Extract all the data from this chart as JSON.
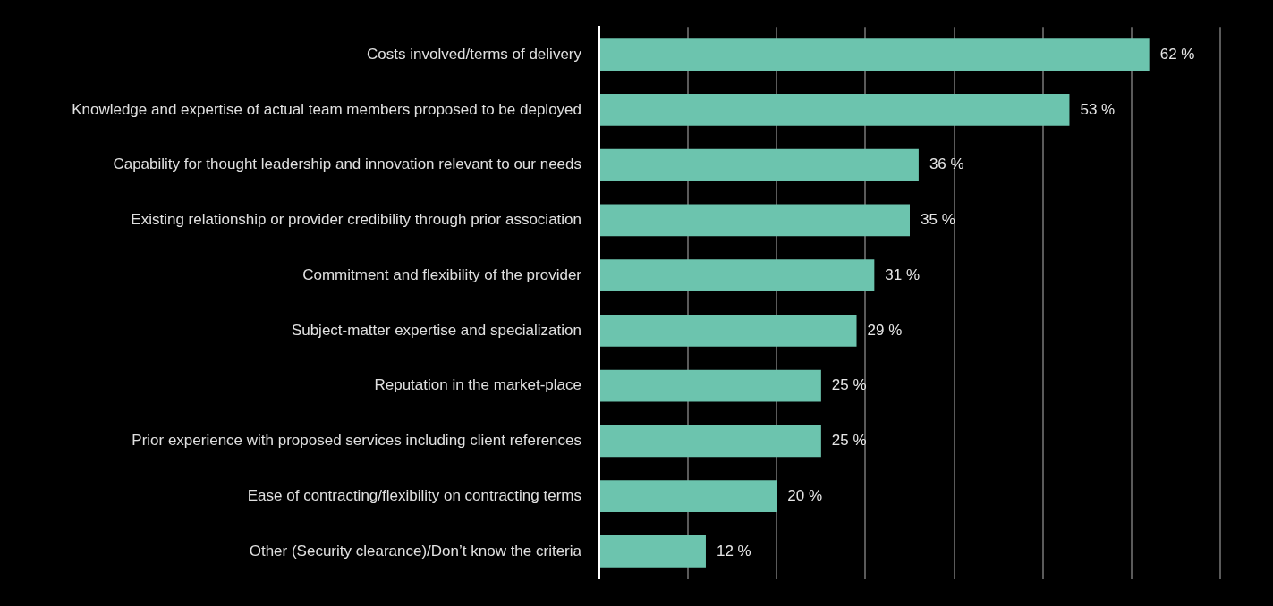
{
  "chart_data": {
    "type": "bar",
    "orientation": "horizontal",
    "categories": [
      "Costs involved/terms of delivery",
      "Knowledge and expertise of actual team members proposed to be deployed",
      "Capability for thought leadership and innovation relevant to our needs",
      "Existing relationship or provider credibility through prior association",
      "Commitment and flexibility of the provider",
      "Subject-matter expertise and specialization",
      "Reputation in the market-place",
      "Prior experience with proposed services including client references",
      "Ease of contracting/flexibility on contracting terms",
      "Other (Security clearance)/Don’t know the criteria"
    ],
    "values": [
      62,
      53,
      36,
      35,
      31,
      29,
      25,
      25,
      20,
      12
    ],
    "value_labels": [
      "62 %",
      "53 %",
      "36 %",
      "35 %",
      "31 %",
      "29 %",
      "25 %",
      "25 %",
      "20 %",
      "12 %"
    ],
    "color": "#6cc4ae",
    "xlim": [
      0,
      70
    ],
    "xticks": [
      {
        "value": 0,
        "label": null
      },
      {
        "value": 10,
        "label": null
      },
      {
        "value": 20,
        "label": null
      },
      {
        "value": 30,
        "label": null
      },
      {
        "value": 40,
        "label": null
      },
      {
        "value": 50,
        "label": null
      },
      {
        "value": 60,
        "label": null
      },
      {
        "value": 70,
        "label": null
      }
    ],
    "grid": "x",
    "tick_labels": "y",
    "legend": false
  }
}
